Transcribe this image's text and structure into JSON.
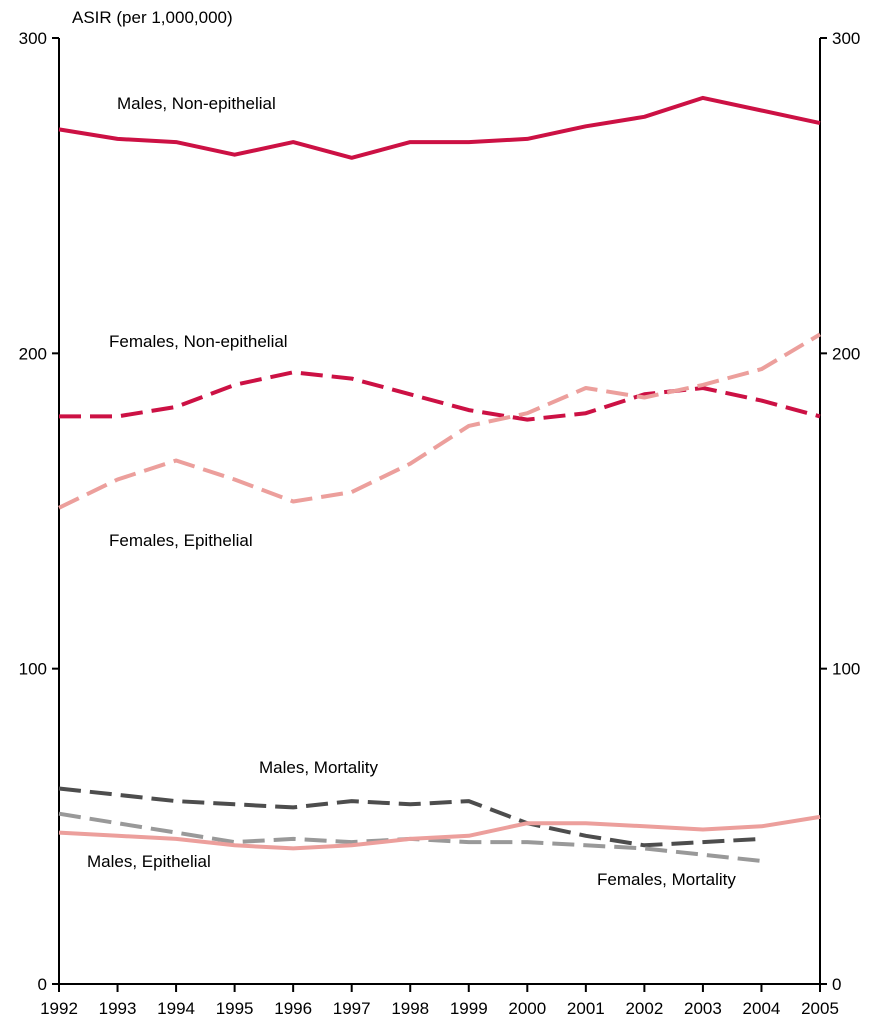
{
  "chart_data": {
    "type": "line",
    "ylabel": "ASIR (per 1,000,000)",
    "xlabel": "",
    "x": [
      "1992",
      "1993",
      "1994",
      "1995",
      "1996",
      "1997",
      "1998",
      "1999",
      "2000",
      "2001",
      "2002",
      "2003",
      "2004",
      "2005"
    ],
    "ylim": [
      0,
      300
    ],
    "y_ticks": [
      "0",
      "100",
      "200",
      "300"
    ],
    "y_ticks_right": [
      "0",
      "100",
      "200",
      "300"
    ],
    "grid": false,
    "series": [
      {
        "name": "Males, Non-epithelial",
        "color": "#cc1144",
        "dash": "solid",
        "values": [
          271,
          268,
          267,
          263,
          267,
          262,
          267,
          267,
          268,
          272,
          275,
          281,
          277,
          273
        ]
      },
      {
        "name": "Females, Non-epithelial",
        "color": "#cc1144",
        "dash": "dashed",
        "values": [
          180,
          180,
          183,
          190,
          194,
          192,
          187,
          182,
          179,
          181,
          187,
          189,
          185,
          180
        ]
      },
      {
        "name": "Females, Epithelial",
        "color": "#ec9f9c",
        "dash": "dashed",
        "values": [
          151,
          160,
          166,
          160,
          153,
          156,
          165,
          177,
          181,
          189,
          186,
          190,
          195,
          206
        ]
      },
      {
        "name": "Males, Mortality",
        "color": "#4d4d4d",
        "dash": "dashed",
        "values": [
          62,
          60,
          58,
          57,
          56,
          58,
          57,
          58,
          51,
          47,
          44,
          45,
          46,
          null
        ]
      },
      {
        "name": "Females, Mortality",
        "color": "#999999",
        "dash": "dashed",
        "values": [
          54,
          51,
          48,
          45,
          46,
          45,
          46,
          45,
          45,
          44,
          43,
          41,
          39,
          null
        ]
      },
      {
        "name": "Males, Epithelial",
        "color": "#ec9f9c",
        "dash": "solid",
        "values": [
          48,
          47,
          46,
          44,
          43,
          44,
          46,
          47,
          51,
          51,
          50,
          49,
          50,
          53
        ]
      }
    ]
  }
}
